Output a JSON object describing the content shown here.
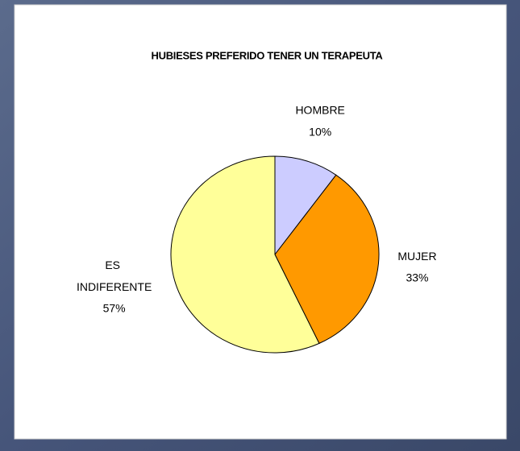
{
  "chart_data": {
    "type": "pie",
    "title": "HUBIESES PREFERIDO TENER UN TERAPEUTA",
    "categories": [
      "HOMBRE",
      "MUJER",
      "ES INDIFERENTE"
    ],
    "values": [
      10,
      33,
      57
    ],
    "value_labels": [
      "10%",
      "33%",
      "57%"
    ],
    "colors": [
      "#ccccff",
      "#ff9900",
      "#ffff99"
    ]
  }
}
